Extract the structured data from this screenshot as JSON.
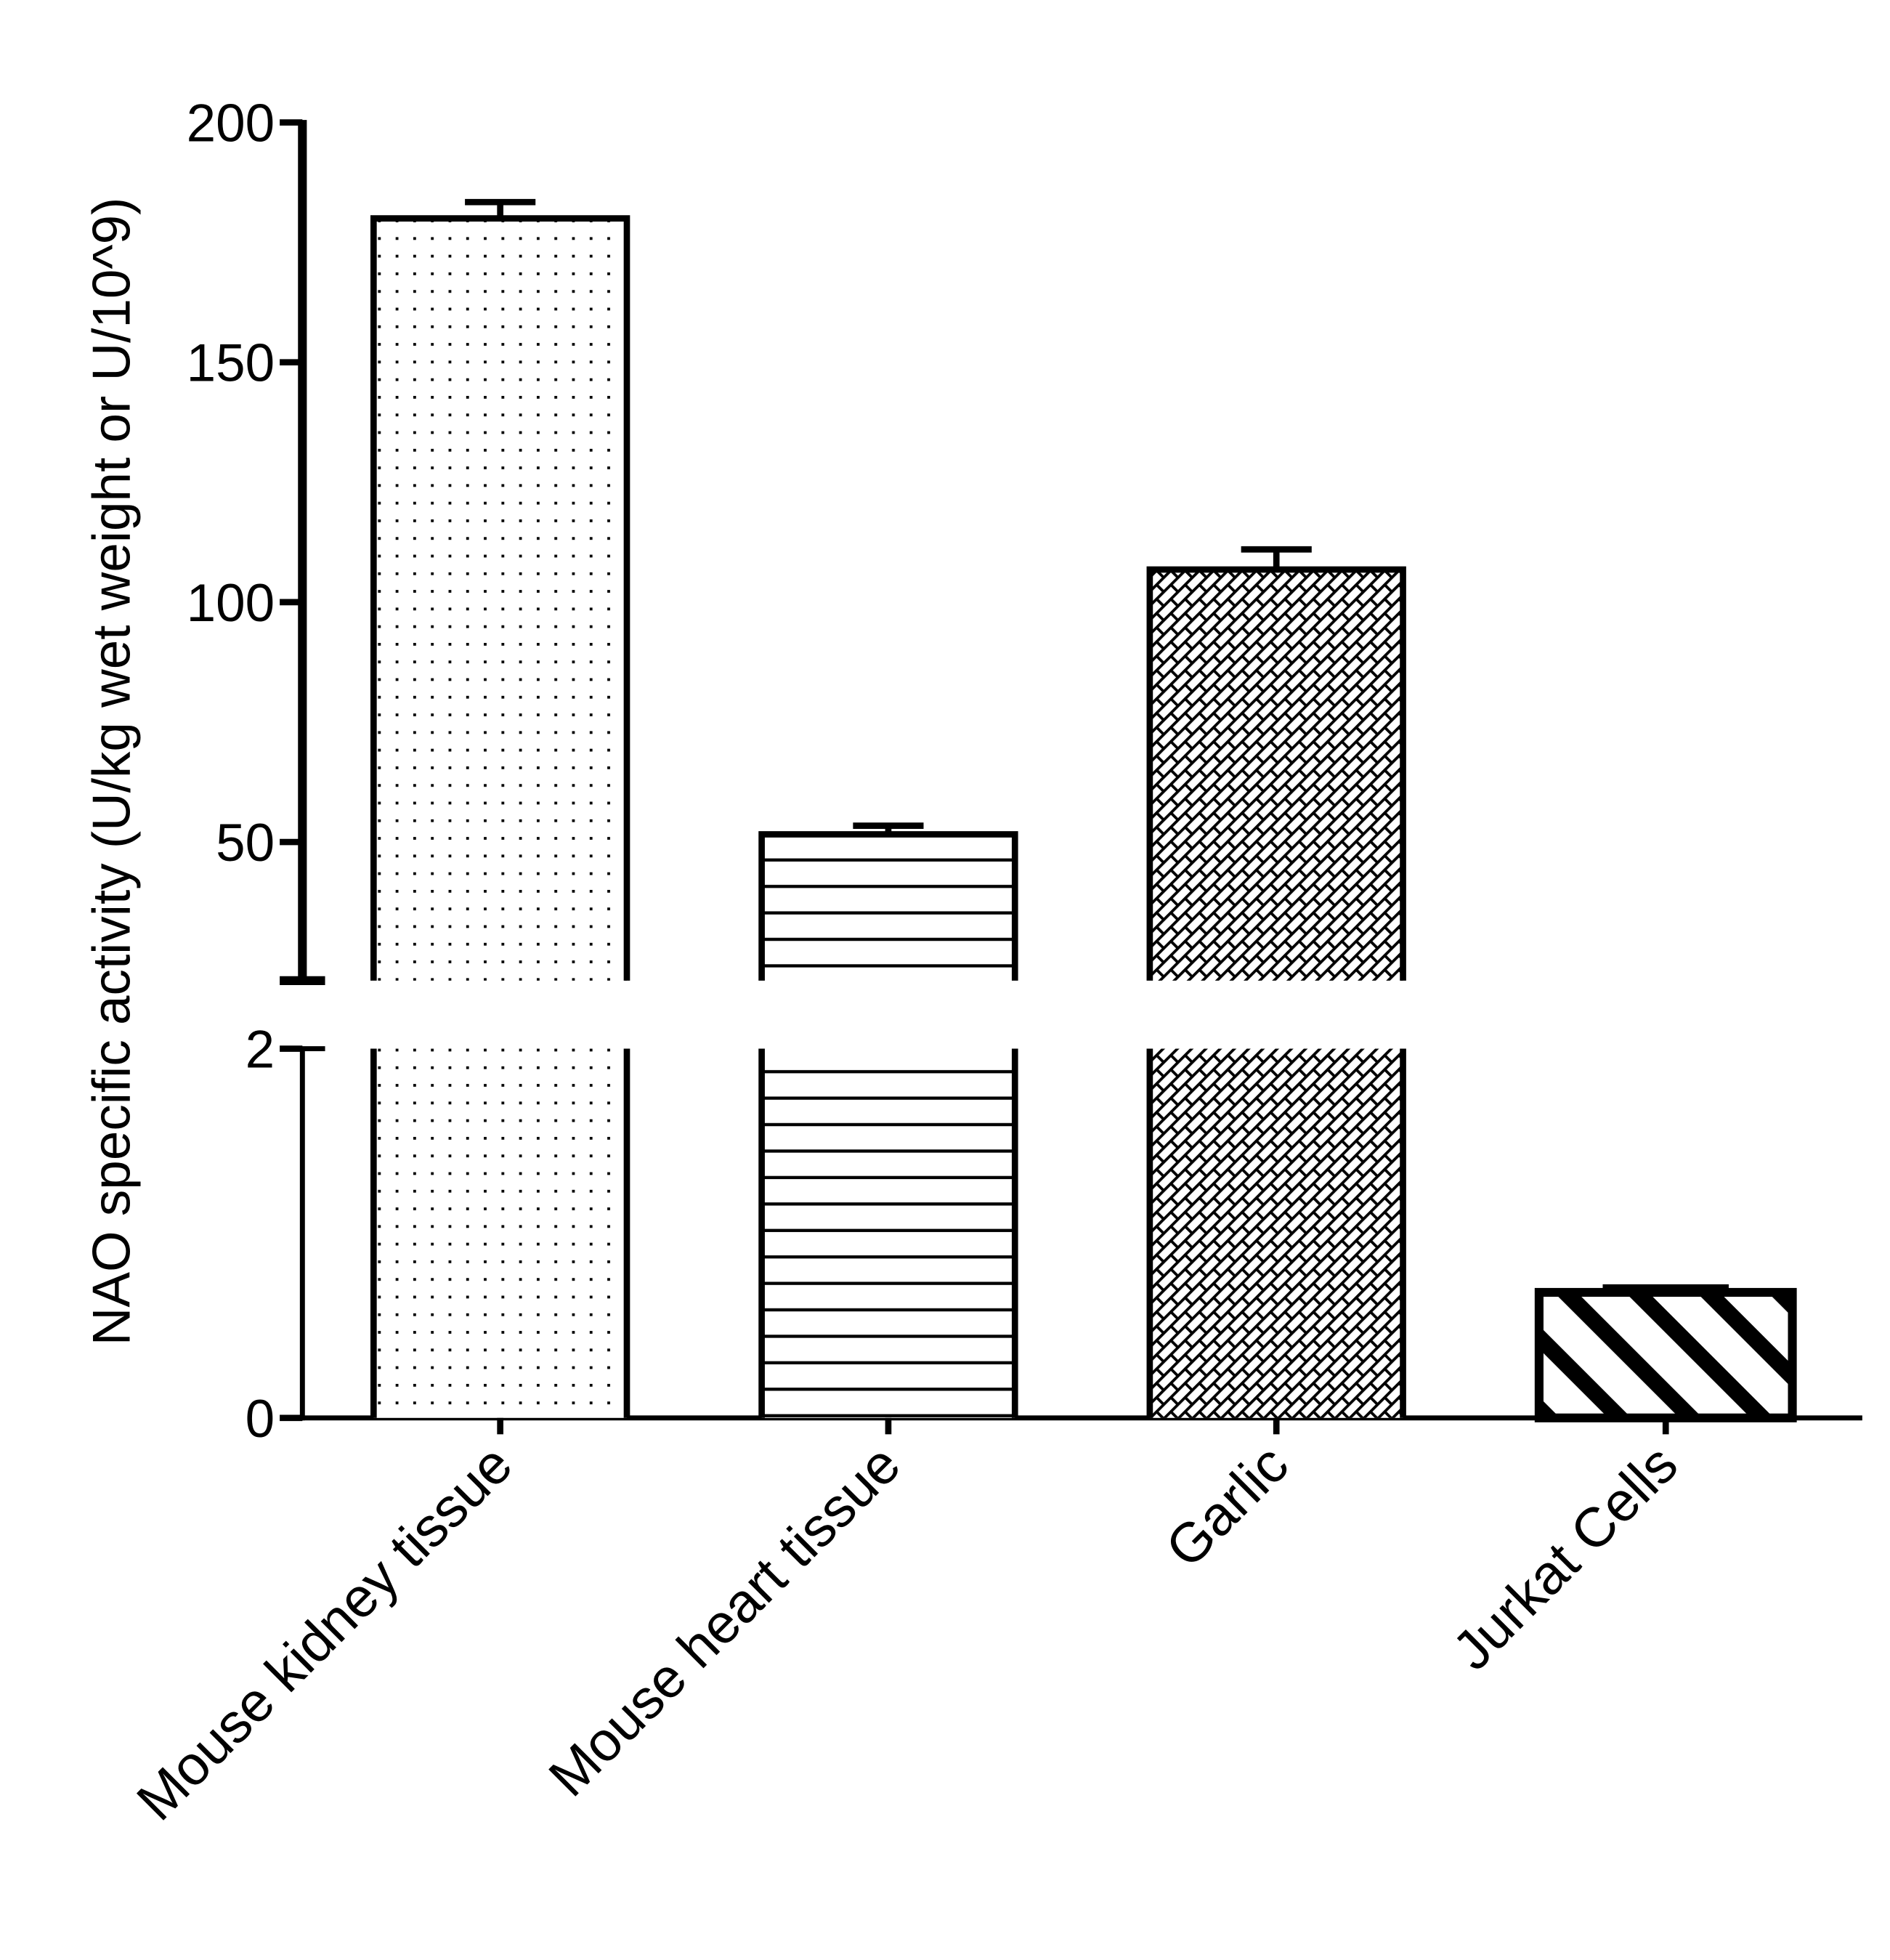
{
  "chart_data": {
    "type": "bar",
    "title": "",
    "xlabel": "",
    "ylabel": "NAO specific activity (U/kg wet weight or U/10^9)",
    "categories": [
      "Mouse kidney tissue",
      "Mouse heart tissue",
      "Garlic",
      "Jurkat Cells"
    ],
    "values": [
      180,
      51.6,
      106.8,
      0.68
    ],
    "error_upper": [
      183.4,
      53.4,
      111,
      0.71
    ],
    "patterns": [
      "dots",
      "horizontal-lines",
      "brick-hatch",
      "diagonal-stripes"
    ],
    "y_axis_broken": true,
    "ylim_lower_segment": [
      0,
      2
    ],
    "ylim_upper_segment": [
      21,
      200
    ],
    "yticks_lower": [
      "0",
      "2"
    ],
    "yticks_upper": [
      "50",
      "100",
      "150",
      "200"
    ],
    "grid": false,
    "legend": "none",
    "color": "#000000"
  }
}
